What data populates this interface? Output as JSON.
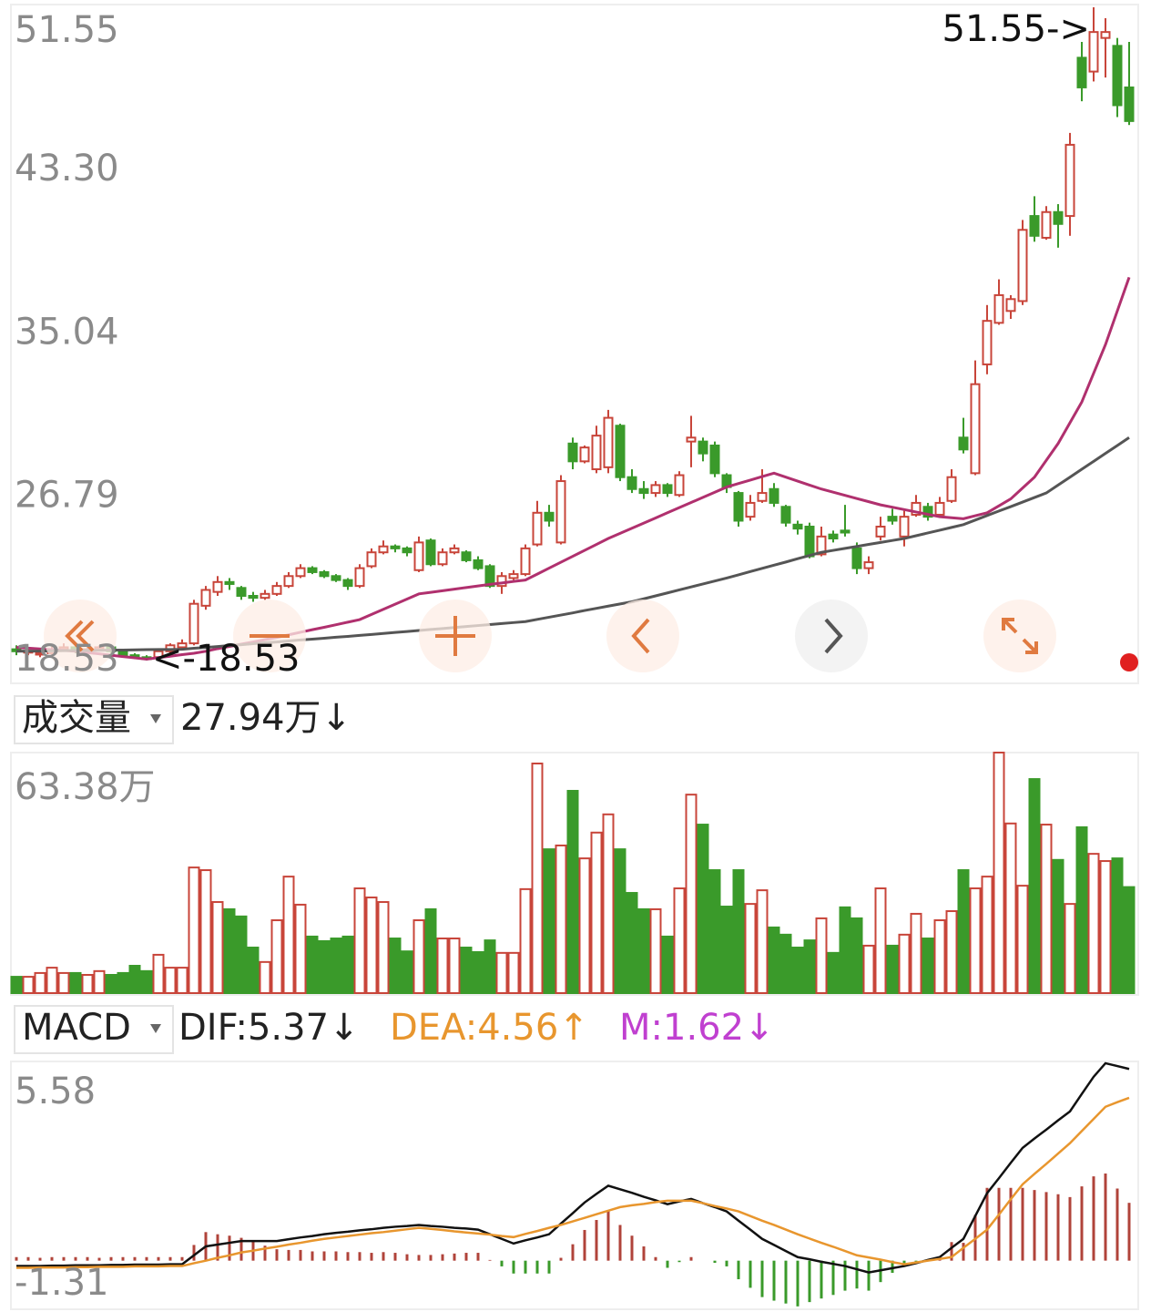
{
  "chart_data": [
    {
      "type": "candlestick",
      "up_color": "#c8453a",
      "down_color": "#3a9a2a",
      "ylim": [
        18.53,
        51.55
      ],
      "yticks": [
        51.55,
        {
          "value": 43.3,
          "label": "43.30"
        },
        35.04,
        26.79,
        18.53
      ],
      "annotations": {
        "high": "51.55->",
        "low": "<-18.53"
      },
      "candles": [
        [
          19.1,
          19.3,
          18.8,
          19.0
        ],
        [
          19.0,
          19.2,
          18.8,
          19.0
        ],
        [
          18.9,
          19.1,
          18.7,
          18.9
        ],
        [
          18.9,
          19.3,
          18.8,
          19.1
        ],
        [
          19.1,
          19.4,
          19.0,
          19.2
        ],
        [
          19.2,
          19.3,
          18.9,
          19.0
        ],
        [
          19.0,
          19.2,
          18.9,
          19.1
        ],
        [
          19.1,
          19.3,
          19.0,
          19.2
        ],
        [
          19.2,
          19.2,
          18.9,
          19.0
        ],
        [
          19.0,
          19.0,
          18.7,
          18.8
        ],
        [
          18.8,
          18.9,
          18.6,
          18.7
        ],
        [
          18.7,
          18.8,
          18.53,
          18.6
        ],
        [
          18.7,
          19.1,
          18.6,
          19.0
        ],
        [
          19.0,
          19.4,
          18.9,
          19.3
        ],
        [
          19.2,
          19.6,
          19.1,
          19.4
        ],
        [
          19.4,
          21.6,
          19.3,
          21.4
        ],
        [
          21.3,
          22.3,
          21.1,
          22.1
        ],
        [
          22.0,
          22.8,
          21.8,
          22.5
        ],
        [
          22.5,
          22.7,
          22.1,
          22.4
        ],
        [
          22.2,
          22.3,
          21.6,
          21.8
        ],
        [
          21.8,
          22.0,
          21.5,
          21.7
        ],
        [
          21.7,
          22.1,
          21.6,
          21.9
        ],
        [
          21.9,
          22.5,
          21.8,
          22.3
        ],
        [
          22.3,
          23.0,
          22.2,
          22.8
        ],
        [
          22.8,
          23.4,
          22.7,
          23.2
        ],
        [
          23.2,
          23.3,
          22.9,
          23.0
        ],
        [
          23.0,
          23.1,
          22.7,
          22.8
        ],
        [
          22.8,
          22.9,
          22.5,
          22.6
        ],
        [
          22.6,
          22.7,
          22.1,
          22.3
        ],
        [
          22.3,
          23.4,
          22.2,
          23.2
        ],
        [
          23.3,
          24.2,
          23.2,
          24.0
        ],
        [
          24.0,
          24.6,
          23.9,
          24.3
        ],
        [
          24.3,
          24.4,
          24.0,
          24.2
        ],
        [
          24.2,
          24.3,
          23.8,
          24.0
        ],
        [
          23.1,
          24.8,
          23.0,
          24.5
        ],
        [
          24.6,
          24.7,
          23.3,
          23.4
        ],
        [
          23.4,
          24.2,
          23.3,
          24.0
        ],
        [
          24.0,
          24.4,
          23.9,
          24.2
        ],
        [
          24.0,
          24.1,
          23.5,
          23.6
        ],
        [
          23.6,
          23.8,
          23.1,
          23.2
        ],
        [
          23.3,
          23.4,
          22.2,
          22.3
        ],
        [
          22.3,
          23.0,
          21.9,
          22.8
        ],
        [
          22.7,
          23.1,
          22.6,
          22.9
        ],
        [
          22.9,
          24.4,
          22.8,
          24.2
        ],
        [
          24.4,
          26.6,
          24.3,
          26.0
        ],
        [
          26.0,
          26.4,
          25.3,
          25.6
        ],
        [
          24.5,
          27.9,
          24.4,
          27.6
        ],
        [
          29.5,
          29.8,
          28.2,
          28.6
        ],
        [
          28.6,
          29.4,
          28.5,
          29.3
        ],
        [
          28.2,
          30.4,
          28.0,
          29.9
        ],
        [
          28.3,
          31.2,
          28.0,
          30.8
        ],
        [
          30.4,
          30.5,
          27.6,
          27.8
        ],
        [
          27.8,
          28.2,
          27.0,
          27.2
        ],
        [
          27.2,
          27.6,
          26.7,
          27.0
        ],
        [
          27.0,
          27.6,
          26.8,
          27.4
        ],
        [
          27.4,
          27.5,
          26.8,
          27.0
        ],
        [
          26.9,
          28.1,
          26.8,
          27.9
        ],
        [
          29.6,
          30.9,
          28.3,
          29.8
        ],
        [
          29.6,
          29.8,
          28.6,
          29.0
        ],
        [
          29.4,
          29.6,
          27.8,
          28.0
        ],
        [
          27.9,
          28.0,
          27.0,
          27.3
        ],
        [
          27.0,
          27.1,
          25.3,
          25.6
        ],
        [
          25.8,
          26.9,
          25.6,
          26.5
        ],
        [
          26.6,
          28.2,
          26.5,
          27.0
        ],
        [
          27.2,
          27.5,
          26.3,
          26.5
        ],
        [
          26.3,
          26.4,
          25.3,
          25.5
        ],
        [
          25.4,
          25.6,
          24.9,
          25.2
        ],
        [
          25.3,
          25.5,
          23.7,
          23.8
        ],
        [
          23.9,
          25.3,
          23.8,
          24.8
        ],
        [
          24.9,
          25.1,
          24.5,
          24.7
        ],
        [
          25.1,
          26.4,
          24.8,
          25.0
        ],
        [
          24.2,
          24.5,
          22.9,
          23.2
        ],
        [
          23.2,
          23.8,
          22.9,
          23.5
        ],
        [
          24.8,
          25.8,
          24.6,
          25.3
        ],
        [
          25.8,
          26.2,
          25.4,
          25.6
        ],
        [
          24.8,
          26.1,
          24.3,
          25.8
        ],
        [
          25.9,
          26.9,
          25.8,
          26.5
        ],
        [
          26.3,
          26.5,
          25.6,
          25.8
        ],
        [
          25.9,
          26.8,
          25.8,
          26.5
        ],
        [
          26.6,
          28.2,
          26.5,
          27.8
        ],
        [
          29.8,
          30.8,
          29.0,
          29.2
        ],
        [
          28.0,
          33.7,
          27.9,
          32.5
        ],
        [
          33.5,
          36.5,
          33.0,
          35.7
        ],
        [
          35.6,
          37.8,
          35.5,
          37.0
        ],
        [
          36.2,
          37.0,
          35.8,
          36.8
        ],
        [
          36.7,
          40.8,
          36.5,
          40.3
        ],
        [
          41.0,
          42.0,
          39.7,
          40.0
        ],
        [
          39.9,
          41.5,
          39.8,
          41.2
        ],
        [
          41.2,
          41.6,
          39.4,
          40.6
        ],
        [
          41.0,
          45.2,
          40.0,
          44.6
        ],
        [
          49.0,
          49.8,
          46.8,
          47.5
        ],
        [
          48.3,
          51.55,
          47.8,
          50.3
        ],
        [
          50.0,
          51.0,
          48.0,
          50.3
        ],
        [
          49.6,
          50.0,
          46.0,
          46.6
        ],
        [
          47.5,
          49.8,
          45.6,
          45.8
        ]
      ],
      "lines": [
        {
          "color": "#b0306e",
          "values": [
            19.2,
            19.16,
            19.12,
            19.08,
            19.04,
            19.0,
            18.93,
            18.87,
            18.8,
            18.73,
            18.67,
            18.6,
            18.68,
            18.75,
            18.83,
            18.9,
            19.0,
            19.13,
            19.24,
            19.36,
            19.47,
            19.59,
            19.7,
            19.83,
            19.96,
            20.09,
            20.21,
            20.34,
            20.47,
            20.6,
            20.86,
            21.12,
            21.38,
            21.64,
            21.9,
            21.98,
            22.06,
            22.14,
            22.22,
            22.3,
            22.38,
            22.45,
            22.53,
            22.6,
            22.9,
            23.2,
            23.5,
            23.8,
            24.1,
            24.4,
            24.7,
            24.96,
            25.22,
            25.48,
            25.74,
            26.0,
            26.26,
            26.52,
            26.78,
            27.04,
            27.3,
            27.48,
            27.65,
            27.83,
            28.0,
            27.8,
            27.6,
            27.4,
            27.2,
            27.04,
            26.88,
            26.72,
            26.56,
            26.4,
            26.28,
            26.16,
            26.04,
            25.92,
            25.8,
            25.75,
            25.7,
            25.85,
            26.0,
            26.35,
            26.7,
            27.25,
            27.8,
            28.65,
            29.5,
            30.55,
            31.6,
            33.05,
            34.5,
            36.2,
            37.9
          ]
        },
        {
          "color": "#555555",
          "values": [
            19.0,
            19.01,
            19.01,
            19.02,
            19.03,
            19.04,
            19.04,
            19.05,
            19.06,
            19.06,
            19.07,
            19.08,
            19.09,
            19.09,
            19.1,
            19.15,
            19.19,
            19.24,
            19.29,
            19.33,
            19.38,
            19.43,
            19.47,
            19.52,
            19.57,
            19.61,
            19.66,
            19.71,
            19.75,
            19.8,
            19.85,
            19.9,
            19.95,
            20.0,
            20.05,
            20.1,
            20.15,
            20.2,
            20.25,
            20.3,
            20.35,
            20.4,
            20.45,
            20.5,
            20.61,
            20.72,
            20.83,
            20.94,
            21.06,
            21.17,
            21.28,
            21.39,
            21.5,
            21.65,
            21.8,
            21.95,
            22.1,
            22.25,
            22.4,
            22.55,
            22.7,
            22.86,
            23.03,
            23.19,
            23.35,
            23.51,
            23.68,
            23.84,
            24.0,
            24.1,
            24.2,
            24.3,
            24.4,
            24.5,
            24.6,
            24.7,
            24.84,
            24.98,
            25.12,
            25.26,
            25.4,
            25.63,
            25.86,
            26.09,
            26.31,
            26.54,
            26.77,
            27.0,
            27.4,
            27.8,
            28.2,
            28.6,
            29.0,
            29.4,
            29.8
          ]
        }
      ]
    },
    {
      "type": "volume",
      "header": {
        "label": "成交量",
        "value": "27.94万↓"
      },
      "up_color": "#c8453a",
      "down_color": "#3a9a2a",
      "ylim": [
        0,
        63.38
      ],
      "yticks": [
        {
          "value": 63.38,
          "label": "63.38万"
        }
      ],
      "values": [
        4.3,
        4.3,
        5.3,
        6.7,
        5.3,
        5.3,
        4.8,
        5.8,
        4.8,
        5.3,
        7.2,
        5.8,
        10.1,
        6.7,
        6.7,
        33.1,
        32.4,
        24.0,
        22.1,
        20.2,
        12.0,
        8.2,
        19.2,
        30.7,
        23.3,
        14.9,
        13.7,
        14.4,
        14.9,
        27.6,
        25.2,
        24.0,
        14.4,
        11.0,
        19.2,
        22.1,
        14.4,
        14.4,
        12.0,
        10.8,
        13.9,
        10.6,
        10.6,
        27.4,
        60.5,
        37.9,
        38.9,
        53.3,
        35.5,
        42.3,
        47.1,
        37.9,
        26.4,
        22.1,
        22.1,
        14.9,
        27.6,
        52.3,
        44.4,
        32.4,
        22.8,
        32.4,
        23.5,
        27.1,
        17.3,
        15.4,
        12.0,
        13.9,
        19.7,
        10.6,
        22.6,
        19.7,
        12.5,
        27.6,
        12.5,
        15.4,
        20.9,
        14.4,
        19.2,
        21.6,
        32.4,
        27.6,
        30.7,
        63.38,
        44.7,
        28.3,
        56.4,
        44.4,
        35.1,
        23.5,
        43.7,
        36.7,
        34.8,
        35.5,
        27.94
      ]
    },
    {
      "type": "macd",
      "header": {
        "label": "MACD",
        "dif": "DIF:5.37↓",
        "dea": "DEA:4.56↑",
        "m": "M:1.62↓"
      },
      "ylim": [
        -1.31,
        5.58
      ],
      "yticks": [
        5.58,
        -1.31
      ],
      "dif": {
        "color": "#111111",
        "values": [
          -0.15,
          -0.15,
          -0.15,
          -0.14,
          -0.14,
          -0.13,
          -0.13,
          -0.13,
          -0.12,
          -0.12,
          -0.11,
          -0.11,
          -0.11,
          -0.1,
          -0.1,
          0.15,
          0.4,
          0.45,
          0.5,
          0.55,
          0.55,
          0.55,
          0.55,
          0.6,
          0.65,
          0.69,
          0.74,
          0.78,
          0.81,
          0.85,
          0.88,
          0.92,
          0.95,
          0.97,
          1.0,
          0.97,
          0.95,
          0.92,
          0.9,
          0.87,
          0.74,
          0.61,
          0.48,
          0.57,
          0.65,
          0.74,
          1.04,
          1.33,
          1.63,
          1.87,
          2.1,
          2.0,
          1.9,
          1.79,
          1.69,
          1.58,
          1.66,
          1.73,
          1.61,
          1.5,
          1.38,
          1.12,
          0.87,
          0.61,
          0.44,
          0.27,
          0.1,
          0.04,
          -0.03,
          -0.09,
          -0.15,
          -0.24,
          -0.33,
          -0.27,
          -0.21,
          -0.15,
          -0.07,
          0.02,
          0.1,
          0.36,
          0.61,
          1.25,
          1.89,
          2.31,
          2.74,
          3.16,
          3.42,
          3.67,
          3.93,
          4.18,
          4.67,
          5.15,
          5.53,
          5.45,
          5.37
        ]
      },
      "dea": {
        "color": "#e8962e",
        "values": [
          -0.2,
          -0.2,
          -0.19,
          -0.19,
          -0.19,
          -0.18,
          -0.18,
          -0.17,
          -0.17,
          -0.17,
          -0.16,
          -0.16,
          -0.16,
          -0.15,
          -0.15,
          -0.07,
          0.0,
          0.08,
          0.15,
          0.23,
          0.28,
          0.34,
          0.39,
          0.45,
          0.5,
          0.56,
          0.61,
          0.65,
          0.69,
          0.73,
          0.77,
          0.8,
          0.84,
          0.88,
          0.92,
          0.89,
          0.86,
          0.82,
          0.79,
          0.76,
          0.73,
          0.69,
          0.66,
          0.75,
          0.83,
          0.92,
          1.0,
          1.1,
          1.2,
          1.3,
          1.4,
          1.5,
          1.55,
          1.59,
          1.64,
          1.68,
          1.68,
          1.68,
          1.61,
          1.53,
          1.46,
          1.38,
          1.25,
          1.12,
          1.0,
          0.87,
          0.74,
          0.62,
          0.5,
          0.39,
          0.27,
          0.15,
          0.09,
          0.03,
          -0.04,
          -0.1,
          -0.05,
          0.0,
          0.05,
          0.1,
          0.36,
          0.61,
          0.87,
          1.29,
          1.72,
          2.14,
          2.43,
          2.71,
          3.0,
          3.29,
          3.63,
          3.97,
          4.31,
          4.44,
          4.56
        ]
      },
      "m": {
        "up_color": "#b0433a",
        "down_color": "#3a9a2a",
        "values": [
          0.1,
          0.1,
          0.08,
          0.1,
          0.1,
          0.1,
          0.1,
          0.08,
          0.1,
          0.1,
          0.1,
          0.1,
          0.1,
          0.1,
          0.1,
          0.44,
          0.8,
          0.74,
          0.7,
          0.64,
          0.54,
          0.42,
          0.32,
          0.3,
          0.3,
          0.26,
          0.26,
          0.26,
          0.24,
          0.24,
          0.22,
          0.24,
          0.22,
          0.18,
          0.16,
          0.16,
          0.18,
          0.2,
          0.22,
          0.22,
          0.02,
          -0.16,
          -0.36,
          -0.36,
          -0.36,
          -0.36,
          0.08,
          0.46,
          0.86,
          1.14,
          1.4,
          1.0,
          0.7,
          0.4,
          0.1,
          -0.2,
          -0.04,
          0.1,
          0.0,
          -0.06,
          -0.16,
          -0.52,
          -0.76,
          -1.02,
          -1.12,
          -1.2,
          -1.28,
          -1.16,
          -1.06,
          -0.96,
          -0.84,
          -0.78,
          -0.84,
          -0.6,
          -0.34,
          -0.1,
          -0.04,
          0.04,
          0.1,
          0.52,
          0.5,
          1.28,
          2.04,
          2.04,
          2.04,
          2.04,
          1.98,
          1.92,
          1.86,
          1.78,
          2.08,
          2.36,
          2.44,
          2.02,
          1.62
        ]
      }
    }
  ]
}
